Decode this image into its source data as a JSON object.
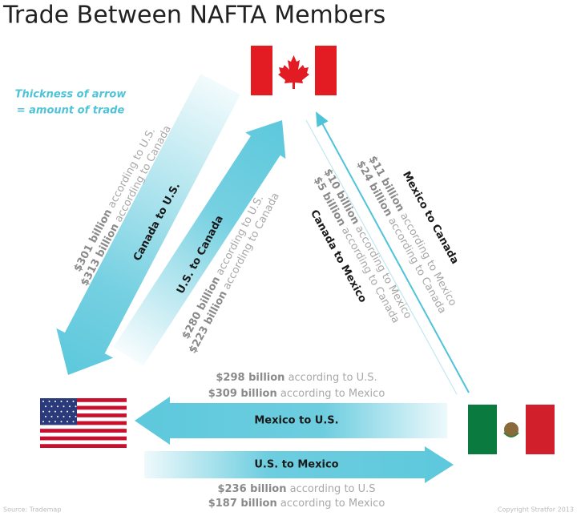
{
  "title": "Trade Between NAFTA Members",
  "legend": [
    "Thickness of arrow",
    "= amount of trade"
  ],
  "arrows": [
    {
      "label": "Canada to U.S.",
      "reports": [
        {
          "amount": "$301 billion",
          "source": "according to U.S."
        },
        {
          "amount": "$313 billion",
          "source": "according to Canada"
        }
      ]
    },
    {
      "label": "U.S. to Canada",
      "reports": [
        {
          "amount": "$280 billion",
          "source": "according to U.S."
        },
        {
          "amount": "$223 billion",
          "source": "according to Canada"
        }
      ]
    },
    {
      "label": "Mexico to Canada",
      "reports": [
        {
          "amount": "$11 billion",
          "source": "according to Mexico"
        },
        {
          "amount": "$24 billion",
          "source": "according to Canada"
        }
      ]
    },
    {
      "label": "Canada to Mexico",
      "reports": [
        {
          "amount": "$10 billion",
          "source": "according to Mexico"
        },
        {
          "amount": "$5 billion",
          "source": "according to Canada"
        }
      ]
    },
    {
      "label": "Mexico to U.S.",
      "reports": [
        {
          "amount": "$298 billion",
          "source": "according to U.S."
        },
        {
          "amount": "$309 billion",
          "source": "according to Mexico"
        }
      ]
    },
    {
      "label": "U.S. to Mexico",
      "reports": [
        {
          "amount": "$236 billion",
          "source": "according to U.S"
        },
        {
          "amount": "$187 billion",
          "source": "according to Mexico"
        }
      ]
    }
  ],
  "footer": {
    "source": "Source: Trademap",
    "copyright": "Copyright Stratfor 2013"
  }
}
